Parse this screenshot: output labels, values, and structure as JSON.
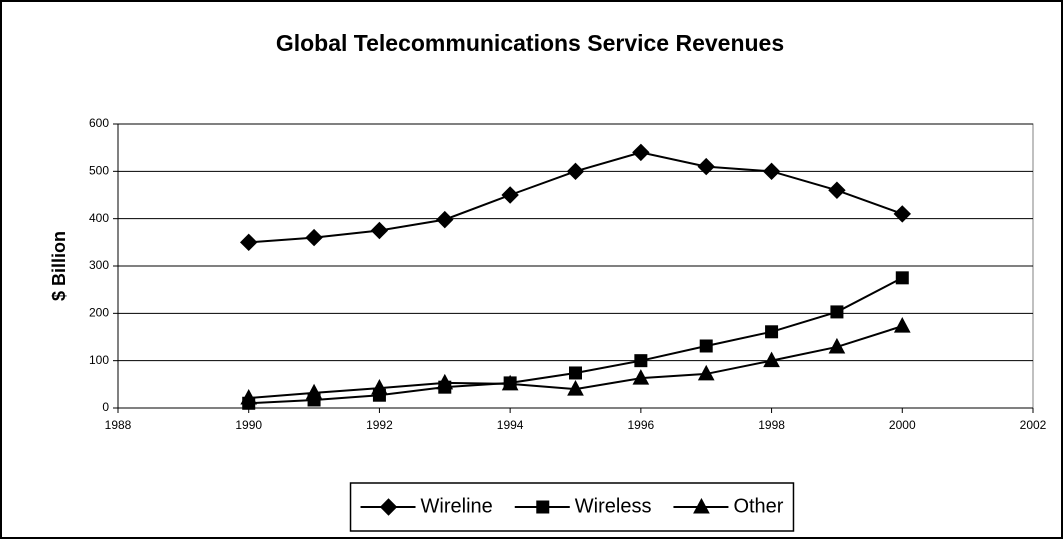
{
  "chart_data": {
    "type": "line",
    "title": "Global Telecommunications Service Revenues",
    "y_label": "$ Billion",
    "x": [
      1990,
      1991,
      1992,
      1993,
      1994,
      1995,
      1996,
      1997,
      1998,
      1999,
      2000
    ],
    "series": [
      {
        "name": "Wireline",
        "color": "#000000",
        "marker": "diamond",
        "values": [
          350,
          360,
          375,
          398,
          450,
          500,
          540,
          510,
          500,
          460,
          410
        ]
      },
      {
        "name": "Wireless",
        "color": "#000000",
        "marker": "square",
        "values": [
          10,
          17,
          27,
          44,
          53,
          74,
          100,
          131,
          161,
          203,
          275
        ]
      },
      {
        "name": "Other",
        "color": "#000000",
        "marker": "triangle",
        "values": [
          21,
          32,
          42,
          53,
          51,
          40,
          63,
          72,
          100,
          129,
          173
        ]
      }
    ],
    "xlim": [
      1988,
      2002
    ],
    "xticks": [
      1988,
      1990,
      1992,
      1994,
      1996,
      1998,
      2000,
      2002
    ],
    "ylim": [
      0,
      600
    ],
    "yticks": [
      0,
      100,
      200,
      300,
      400,
      500,
      600
    ],
    "grid": true,
    "legend": "bottom"
  }
}
